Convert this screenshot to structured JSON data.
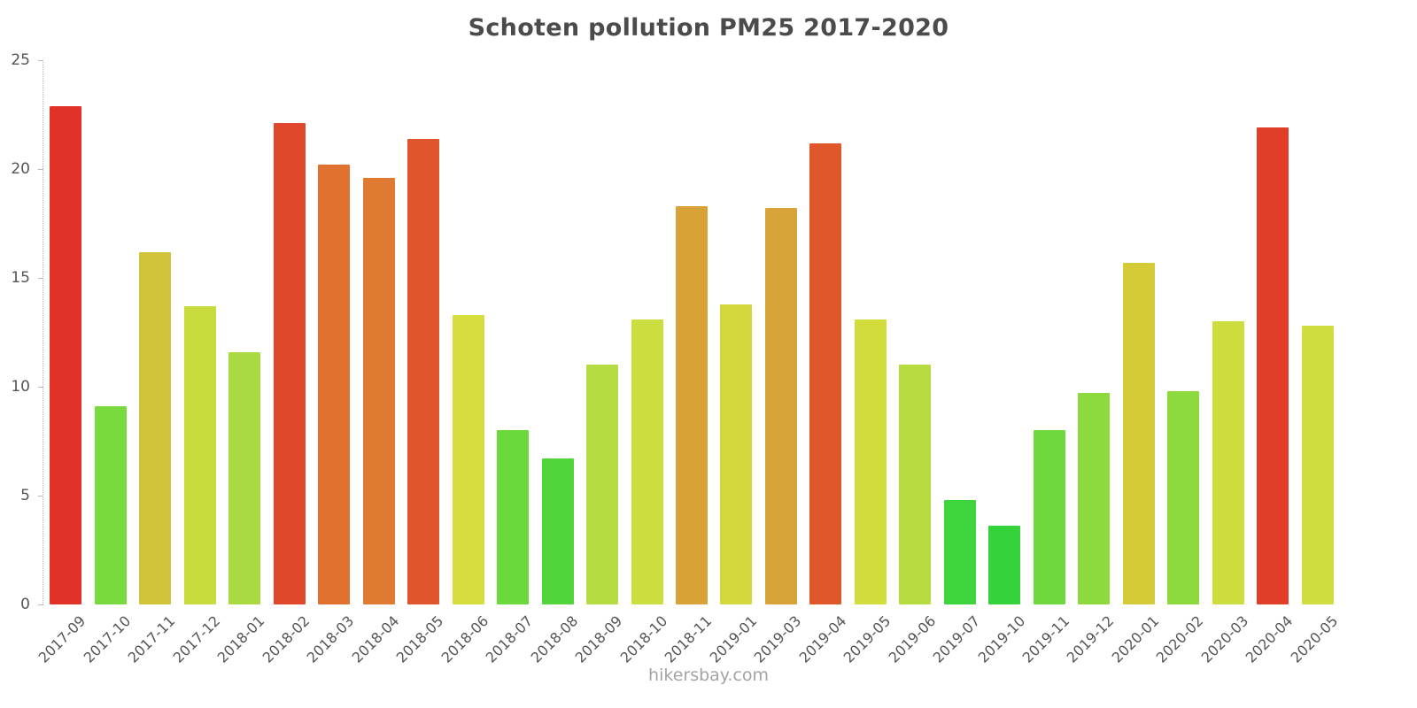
{
  "chart_data": {
    "type": "bar",
    "title": "Schoten pollution PM25 2017-2020",
    "source": "hikersbay.com",
    "xlabel": "",
    "ylabel": "",
    "ylim": [
      0,
      25
    ],
    "yticks": [
      0,
      5,
      10,
      15,
      20,
      25
    ],
    "grid": false,
    "legend": false,
    "categories": [
      "2017-09",
      "2017-10",
      "2017-11",
      "2017-12",
      "2018-01",
      "2018-02",
      "2018-03",
      "2018-04",
      "2018-05",
      "2018-06",
      "2018-07",
      "2018-08",
      "2018-09",
      "2018-10",
      "2018-11",
      "2019-01",
      "2019-03",
      "2019-04",
      "2019-05",
      "2019-06",
      "2019-07",
      "2019-10",
      "2019-11",
      "2019-12",
      "2020-01",
      "2020-02",
      "2020-03",
      "2020-04",
      "2020-05"
    ],
    "values": [
      22.9,
      9.1,
      16.2,
      13.7,
      11.6,
      22.1,
      20.2,
      19.6,
      21.4,
      13.3,
      8.0,
      6.7,
      11.0,
      13.1,
      18.3,
      13.8,
      18.2,
      21.2,
      13.1,
      11.0,
      4.8,
      3.6,
      8.0,
      9.7,
      15.7,
      9.8,
      13.0,
      21.9,
      12.8
    ],
    "colors": [
      "#e03227",
      "#79da3d",
      "#d2c439",
      "#c8dc3f",
      "#a9da41",
      "#e0472b",
      "#e0712f",
      "#de7a31",
      "#e1552c",
      "#d6de3e",
      "#6bd83c",
      "#51d53a",
      "#b5dc40",
      "#cade3f",
      "#d9a237",
      "#d4d83c",
      "#d8a338",
      "#e1572c",
      "#d3dc3d",
      "#b6dc40",
      "#3ed43c",
      "#34d33c",
      "#6fd83d",
      "#8cda3e",
      "#d5cb39",
      "#8dda3e",
      "#cedd3e",
      "#e03e29",
      "#cfdd3f"
    ],
    "axis_color": "#b9b9b9",
    "label_color": "#555555",
    "title_color": "#4b4b4b",
    "source_color": "#a3a3a3"
  }
}
